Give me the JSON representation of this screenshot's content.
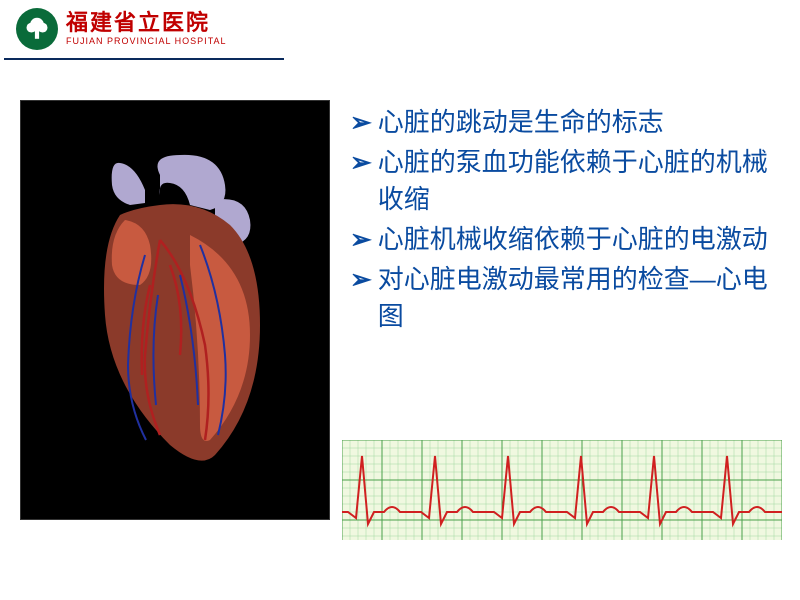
{
  "header": {
    "hospital_cn": "福建省立医院",
    "hospital_en": "FUJIAN PROVINCIAL HOSPITAL",
    "logo_bg": "#0a6b3a",
    "name_color": "#c00000"
  },
  "bullets": {
    "color": "#0a4ba0",
    "fontsize": 26,
    "items": [
      "心脏的跳动是生命的标志",
      "心脏的泵血功能依赖于心脏的机械收缩",
      "心脏机械收缩依赖于心脏的电激动",
      "对心脏电激动最常用的检查—心电图"
    ]
  },
  "heart_image": {
    "background": "#000000",
    "muscle_color": "#8b3a2a",
    "highlight_color": "#c85a40",
    "vessel_light": "#b0a8d0",
    "artery_color": "#b02020",
    "vein_color": "#2030a0"
  },
  "ecg": {
    "type": "line",
    "background": "#f0f8e0",
    "grid_major_color": "#4a9f4a",
    "grid_minor_color": "#a0d8a0",
    "line_color": "#d02020",
    "line_width": 2,
    "x_range": [
      0,
      440
    ],
    "y_range": [
      0,
      100
    ],
    "baseline_y": 72,
    "beat_period": 73,
    "beats": 6,
    "qrs": {
      "q_dx": -6,
      "q_dy": 6,
      "r_dx": 0,
      "r_dy": -56,
      "s_dx": 6,
      "s_dy": 12,
      "t_dx": 22,
      "t_dy": -10,
      "t_width": 16
    },
    "grid_minor_step": 8,
    "grid_major_step": 40
  }
}
